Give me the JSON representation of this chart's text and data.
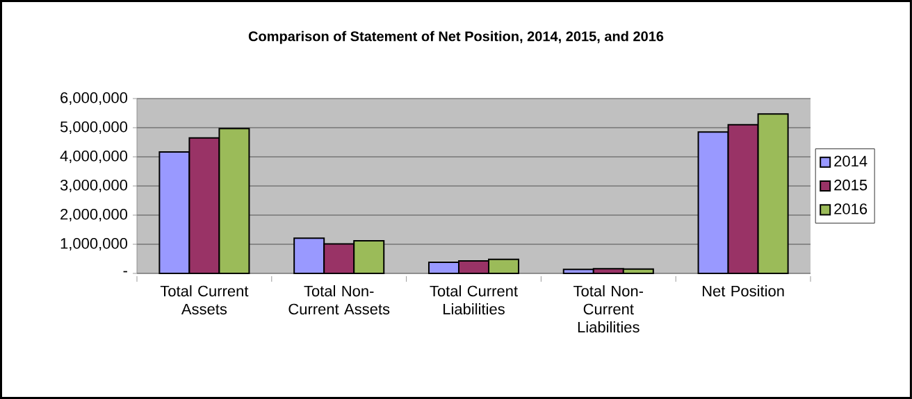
{
  "chart_data": {
    "type": "bar",
    "title": "Comparison of Statement of Net Position, 2014, 2015, and 2016",
    "categories": [
      "Total Current Assets",
      "Total Non-Current Assets",
      "Total Current Liabilities",
      "Total Non-Current Liabilities",
      "Net Position"
    ],
    "series": [
      {
        "name": "2014",
        "color": "#9999ff",
        "values": [
          4170000,
          1210000,
          380000,
          140000,
          4850000
        ]
      },
      {
        "name": "2015",
        "color": "#993366",
        "values": [
          4650000,
          1010000,
          430000,
          160000,
          5100000
        ]
      },
      {
        "name": "2016",
        "color": "#9bbb59",
        "values": [
          4970000,
          1120000,
          480000,
          150000,
          5470000
        ]
      }
    ],
    "ylim": [
      0,
      6000000
    ],
    "yticks": [
      {
        "value": 0,
        "label": "-"
      },
      {
        "value": 1000000,
        "label": "1,000,000"
      },
      {
        "value": 2000000,
        "label": "2,000,000"
      },
      {
        "value": 3000000,
        "label": "3,000,000"
      },
      {
        "value": 4000000,
        "label": "4,000,000"
      },
      {
        "value": 5000000,
        "label": "5,000,000"
      },
      {
        "value": 6000000,
        "label": "6,000,000"
      }
    ],
    "grid": "y",
    "legend": "right"
  }
}
